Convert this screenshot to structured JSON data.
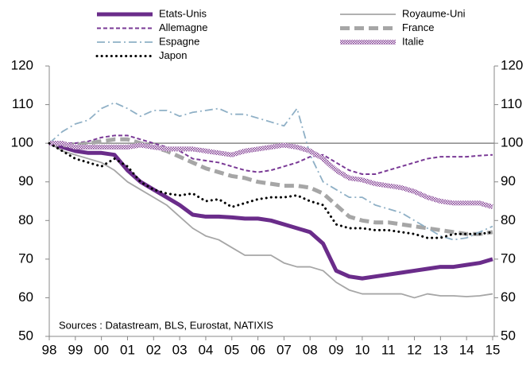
{
  "chart_data": {
    "type": "line",
    "categories": [
      "98",
      null,
      "99",
      null,
      "00",
      null,
      "01",
      null,
      "02",
      null,
      "03",
      null,
      "04",
      null,
      "05",
      null,
      "06",
      null,
      "07",
      null,
      "08",
      null,
      "09",
      null,
      "10",
      null,
      "11",
      null,
      "12",
      null,
      "13",
      null,
      "14",
      null,
      "15"
    ],
    "series": [
      {
        "name": "Etats-Unis",
        "color": "#6a2c8a",
        "style": "thick",
        "values": [
          100,
          99,
          98,
          97.5,
          97.5,
          97,
          93,
          90,
          88,
          86,
          84,
          81.5,
          81,
          81,
          80.8,
          80.5,
          80.5,
          80,
          79,
          78,
          77,
          74,
          67,
          65.5,
          65,
          65.5,
          66,
          66.5,
          67,
          67.5,
          68,
          68,
          68.5,
          69,
          70
        ]
      },
      {
        "name": "Royaume-Uni",
        "color": "#a6a6a6",
        "style": "solid",
        "values": [
          100,
          98,
          97,
          96,
          95,
          93,
          90,
          88,
          86,
          84,
          81,
          78,
          76,
          75,
          73,
          71,
          71,
          71,
          69,
          68,
          68,
          67,
          64,
          62,
          61,
          61,
          61,
          61,
          60,
          61,
          60.5,
          60.5,
          60.3,
          60.5,
          61
        ]
      },
      {
        "name": "Allemagne",
        "color": "#7a3a96",
        "style": "dashed",
        "values": [
          100,
          100,
          100,
          100.5,
          101.5,
          102,
          102,
          101,
          100,
          99,
          98,
          96,
          95.5,
          95,
          94,
          93,
          92.5,
          93,
          94,
          95,
          96.5,
          97,
          95,
          93,
          92,
          92,
          93,
          94,
          95,
          96,
          96.5,
          96.5,
          96.5,
          96.8,
          97
        ]
      },
      {
        "name": "France",
        "color": "#a6a6a6",
        "style": "thick-dashed",
        "values": [
          100,
          99.5,
          99.5,
          100,
          100.5,
          101,
          101,
          100,
          99,
          98,
          96.5,
          95,
          93.5,
          92.5,
          91.5,
          91,
          90,
          89.5,
          89,
          89,
          88.5,
          87,
          84,
          81,
          80,
          79.5,
          79.5,
          79,
          78.5,
          78,
          77.5,
          77,
          76.5,
          76.5,
          77
        ]
      },
      {
        "name": "Espagne",
        "color": "#8fb0c6",
        "style": "dashdot",
        "values": [
          100,
          103,
          105,
          106,
          109,
          110.5,
          109,
          107,
          108.5,
          108.5,
          107,
          108,
          108.5,
          109,
          107.5,
          107.5,
          106.5,
          105.5,
          104.5,
          109,
          97,
          90,
          88,
          86,
          86,
          84,
          83,
          82,
          80,
          78,
          76,
          75,
          75.5,
          77,
          78.5
        ]
      },
      {
        "name": "Italie",
        "color": "#8a4a9a",
        "style": "hatched",
        "values": [
          100,
          100,
          99,
          99,
          99,
          99,
          99,
          99.5,
          99,
          98.5,
          98.5,
          98.5,
          98,
          97.5,
          97,
          98,
          98.5,
          99,
          99.5,
          99,
          98,
          96,
          93,
          91,
          90.5,
          89.5,
          89,
          88.5,
          87.5,
          86,
          85,
          84.5,
          84.5,
          84.5,
          83.5
        ]
      },
      {
        "name": "Japon",
        "color": "#000000",
        "style": "dotted",
        "values": [
          100,
          98,
          96,
          95,
          94,
          96,
          94,
          90,
          88,
          87,
          86.5,
          87,
          85,
          85.5,
          83.5,
          84.5,
          85.5,
          86,
          86,
          86.5,
          85,
          84,
          79,
          78,
          78,
          77.5,
          77.5,
          77,
          76.5,
          75.5,
          75.5,
          76.5,
          76.5,
          76.5,
          77
        ]
      }
    ],
    "ylim": [
      50,
      120
    ],
    "yticks": [
      50,
      60,
      70,
      80,
      90,
      100,
      110,
      120
    ],
    "y2lim": [
      50,
      120
    ],
    "y2ticks": [
      50,
      60,
      70,
      80,
      90,
      100,
      110,
      120
    ],
    "hline": 100,
    "grid": false,
    "annotation": "Sources : Datastream, BLS, Eurostat, NATIXIS"
  }
}
